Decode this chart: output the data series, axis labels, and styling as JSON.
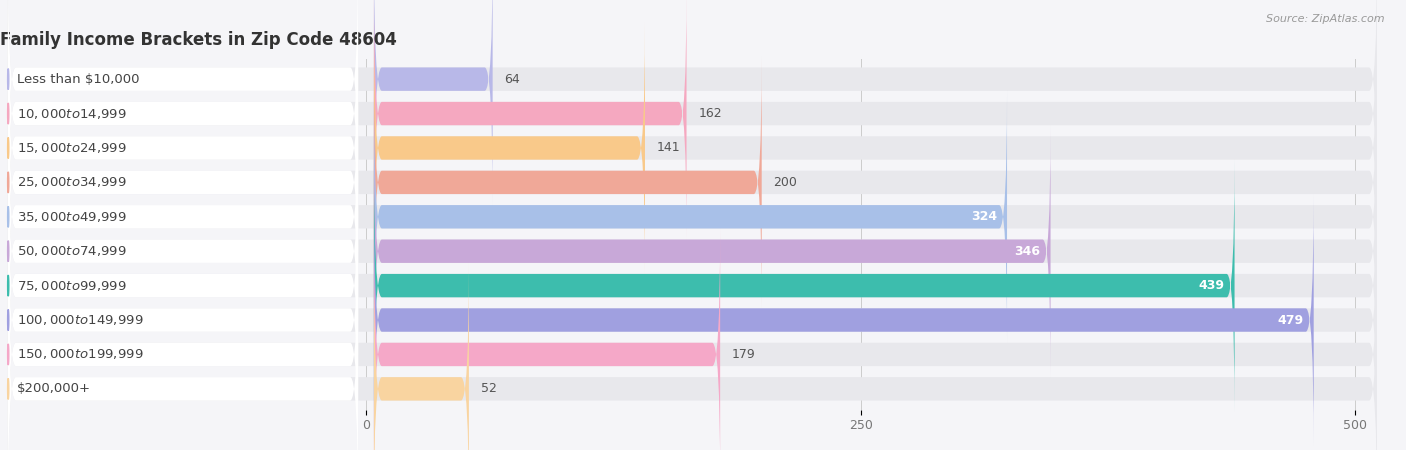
{
  "title": "Family Income Brackets in Zip Code 48604",
  "source": "Source: ZipAtlas.com",
  "categories": [
    "Less than $10,000",
    "$10,000 to $14,999",
    "$15,000 to $24,999",
    "$25,000 to $34,999",
    "$35,000 to $49,999",
    "$50,000 to $74,999",
    "$75,000 to $99,999",
    "$100,000 to $149,999",
    "$150,000 to $199,999",
    "$200,000+"
  ],
  "values": [
    64,
    162,
    141,
    200,
    324,
    346,
    439,
    479,
    179,
    52
  ],
  "bar_colors": [
    "#b8b8e8",
    "#f5a8c0",
    "#f9c98a",
    "#f0a898",
    "#a8c0e8",
    "#c8a8d8",
    "#3dbdad",
    "#a0a0e0",
    "#f5a8c8",
    "#f9d4a0"
  ],
  "label_bg_color": "#ffffff",
  "bar_bg_color": "#e8e8ec",
  "background_color": "#f5f5f8",
  "x_label_width": 170,
  "xlim_left": -185,
  "xlim_right": 515,
  "xticks": [
    0,
    250,
    500
  ],
  "bar_height": 0.68,
  "value_inside_threshold": 300,
  "title_fontsize": 12,
  "label_fontsize": 9.5,
  "value_fontsize": 9,
  "tick_fontsize": 9
}
